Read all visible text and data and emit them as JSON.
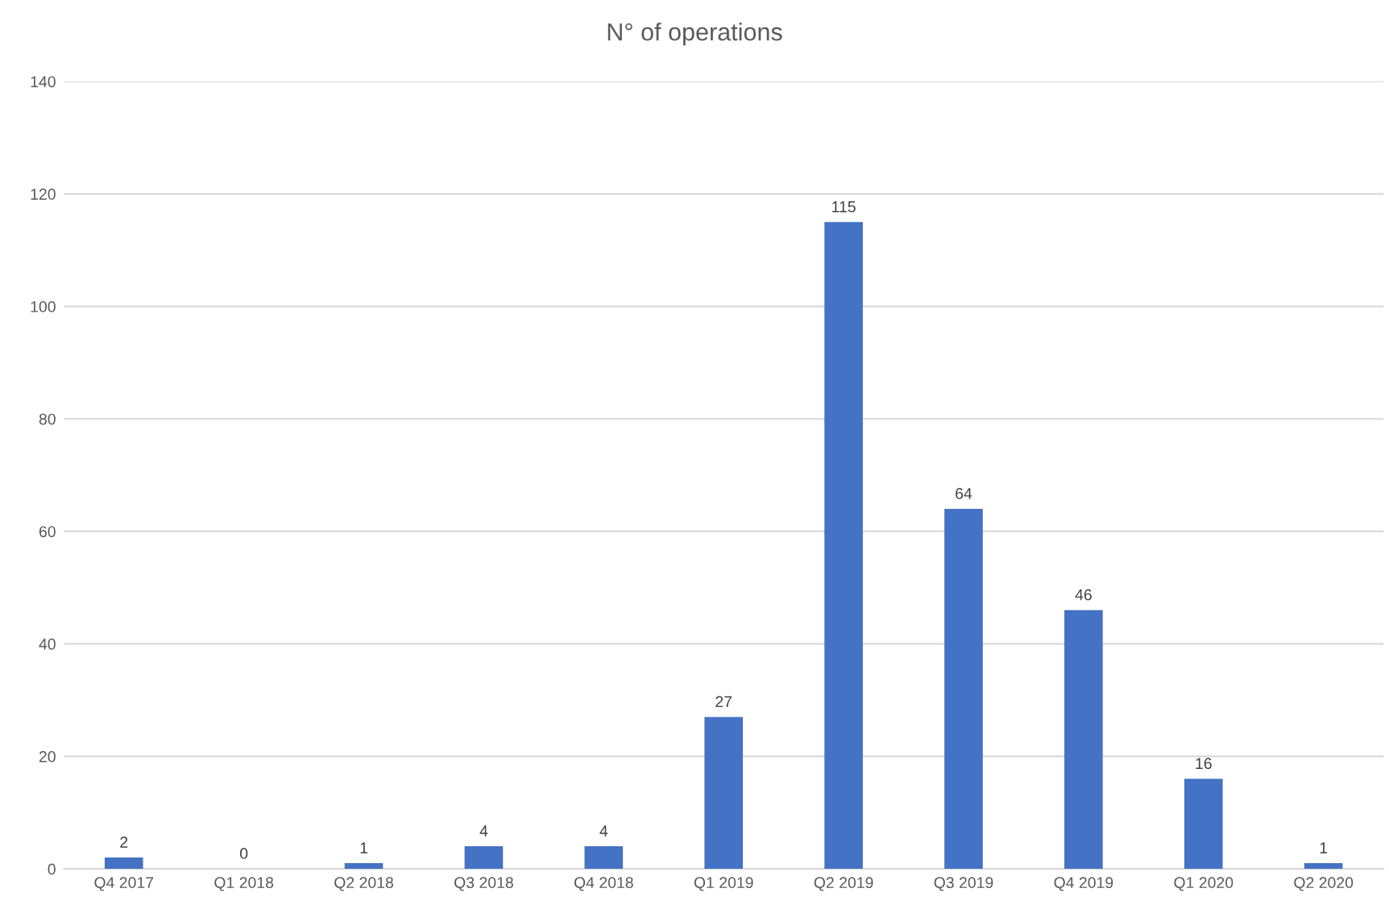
{
  "chart_data": {
    "type": "bar",
    "title": "N° of operations",
    "categories": [
      "Q4 2017",
      "Q1 2018",
      "Q2 2018",
      "Q3 2018",
      "Q4 2018",
      "Q1 2019",
      "Q2 2019",
      "Q3 2019",
      "Q4 2019",
      "Q1 2020",
      "Q2 2020"
    ],
    "values": [
      2,
      0,
      1,
      4,
      4,
      27,
      115,
      64,
      46,
      16,
      1
    ],
    "color": "#4472c4",
    "ylim": [
      0,
      140
    ],
    "yticks": [
      0,
      20,
      40,
      60,
      80,
      100,
      120,
      140
    ],
    "grid": "y",
    "data_labels": true
  }
}
